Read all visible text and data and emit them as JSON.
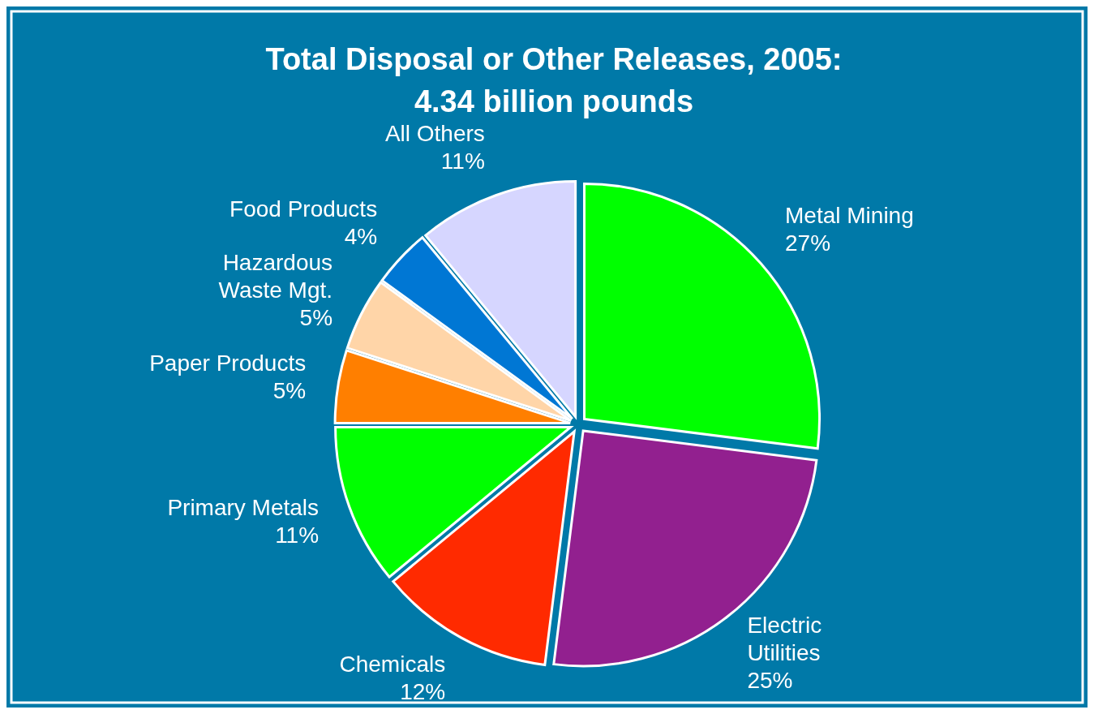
{
  "chart_data": {
    "type": "pie",
    "title": "Total Disposal or Other Releases, 2005:",
    "subtitle": "4.34 billion pounds",
    "categories": [
      "Metal Mining",
      "Electric Utilities",
      "Chemicals",
      "Primary Metals",
      "Paper Products",
      "Hazardous Waste Mgt.",
      "Food Products",
      "All Others"
    ],
    "values": [
      27,
      25,
      12,
      11,
      5,
      5,
      4,
      11
    ],
    "colors": [
      "#00ff00",
      "#92208f",
      "#ff2a00",
      "#00ff00",
      "#ff7f00",
      "#ffd5a8",
      "#0077d4",
      "#d6d6ff"
    ],
    "value_labels": [
      "27%",
      "25%",
      "12%",
      "11%",
      "5%",
      "5%",
      "4%",
      "11%"
    ],
    "legend": false
  }
}
